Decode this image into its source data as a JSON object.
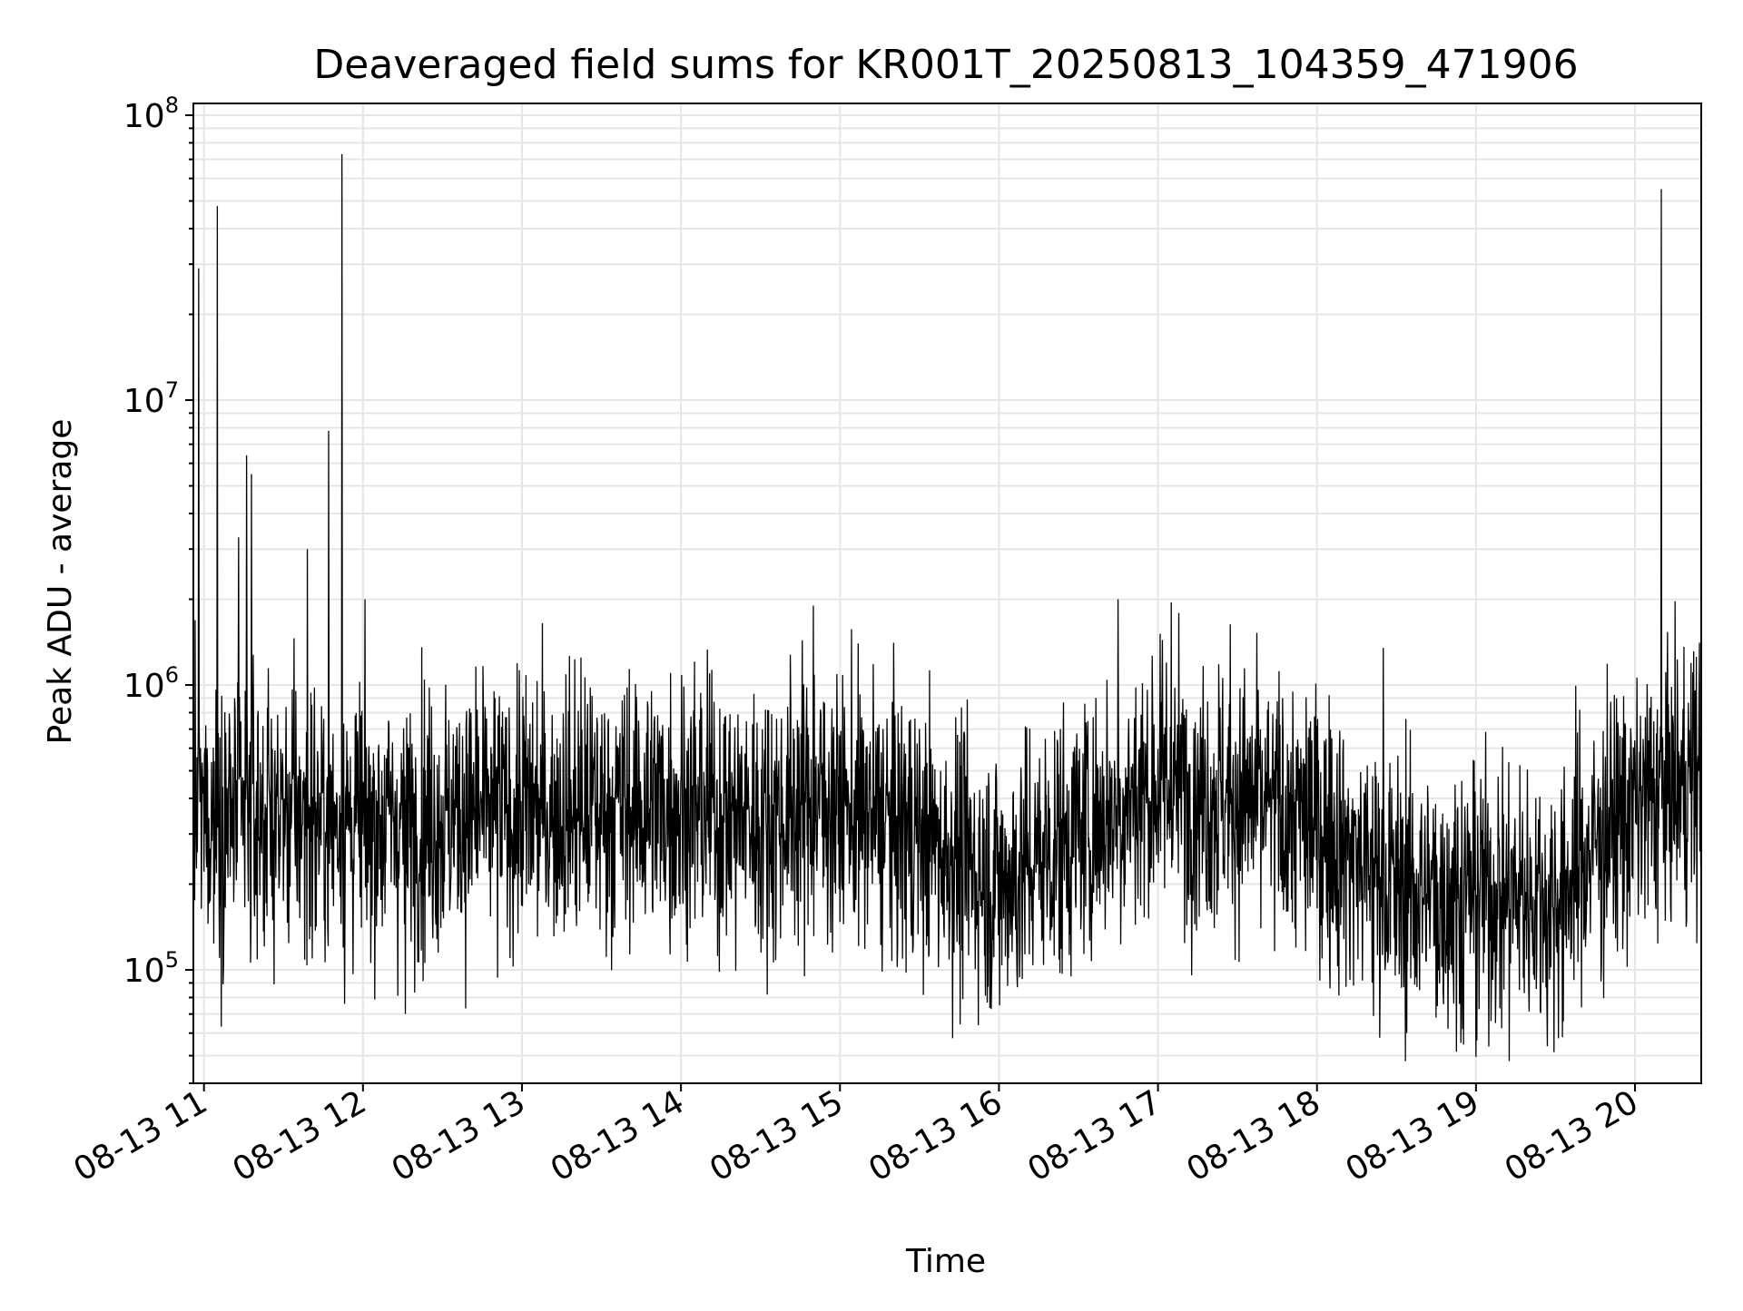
{
  "chart_data": {
    "type": "line",
    "title": "Deaveraged field sums for KR001T_20250813_104359_471906",
    "xlabel": "Time",
    "ylabel": "Peak ADU - average",
    "yscale": "log",
    "grid": true,
    "line_color": "#000000",
    "grid_color": "#e6e6e6",
    "x_range": [
      "2025-08-13 10:56",
      "2025-08-13 20:25"
    ],
    "ylim": [
      40000,
      110000000
    ],
    "x_ticks": [
      {
        "time": "2025-08-13 11:00",
        "label": "08-13 11"
      },
      {
        "time": "2025-08-13 12:00",
        "label": "08-13 12"
      },
      {
        "time": "2025-08-13 13:00",
        "label": "08-13 13"
      },
      {
        "time": "2025-08-13 14:00",
        "label": "08-13 14"
      },
      {
        "time": "2025-08-13 15:00",
        "label": "08-13 15"
      },
      {
        "time": "2025-08-13 16:00",
        "label": "08-13 16"
      },
      {
        "time": "2025-08-13 17:00",
        "label": "08-13 17"
      },
      {
        "time": "2025-08-13 18:00",
        "label": "08-13 18"
      },
      {
        "time": "2025-08-13 19:00",
        "label": "08-13 19"
      },
      {
        "time": "2025-08-13 20:00",
        "label": "08-13 20"
      }
    ],
    "y_ticks": [
      {
        "value": 100000,
        "base": "10",
        "exp": "5"
      },
      {
        "value": 1000000,
        "base": "10",
        "exp": "6"
      },
      {
        "value": 10000000,
        "base": "10",
        "exp": "7"
      },
      {
        "value": 100000000,
        "base": "10",
        "exp": "8"
      }
    ],
    "baseline": [
      {
        "time": "2025-08-13 10:56",
        "value": 350000
      },
      {
        "time": "2025-08-13 11:30",
        "value": 350000
      },
      {
        "time": "2025-08-13 12:00",
        "value": 330000
      },
      {
        "time": "2025-08-13 13:00",
        "value": 360000
      },
      {
        "time": "2025-08-13 14:00",
        "value": 380000
      },
      {
        "time": "2025-08-13 14:30",
        "value": 330000
      },
      {
        "time": "2025-08-13 14:50",
        "value": 400000
      },
      {
        "time": "2025-08-13 15:30",
        "value": 300000
      },
      {
        "time": "2025-08-13 16:00",
        "value": 200000
      },
      {
        "time": "2025-08-13 16:40",
        "value": 350000
      },
      {
        "time": "2025-08-13 17:00",
        "value": 450000
      },
      {
        "time": "2025-08-13 17:30",
        "value": 400000
      },
      {
        "time": "2025-08-13 18:00",
        "value": 320000
      },
      {
        "time": "2025-08-13 18:30",
        "value": 190000
      },
      {
        "time": "2025-08-13 19:30",
        "value": 180000
      },
      {
        "time": "2025-08-13 19:50",
        "value": 320000
      },
      {
        "time": "2025-08-13 20:25",
        "value": 500000
      }
    ],
    "spikes": [
      {
        "time": "2025-08-13 10:58",
        "value": 29000000
      },
      {
        "time": "2025-08-13 11:05",
        "value": 48000000
      },
      {
        "time": "2025-08-13 11:13",
        "value": 3300000
      },
      {
        "time": "2025-08-13 11:16",
        "value": 6400000
      },
      {
        "time": "2025-08-13 11:18",
        "value": 5500000
      },
      {
        "time": "2025-08-13 11:39",
        "value": 3000000
      },
      {
        "time": "2025-08-13 11:47",
        "value": 7800000
      },
      {
        "time": "2025-08-13 11:52",
        "value": 73000000
      },
      {
        "time": "2025-08-13 14:50",
        "value": 1900000
      },
      {
        "time": "2025-08-13 16:45",
        "value": 2000000
      },
      {
        "time": "2025-08-13 17:05",
        "value": 1950000
      },
      {
        "time": "2025-08-13 18:25",
        "value": 1350000
      },
      {
        "time": "2025-08-13 20:10",
        "value": 55000000
      }
    ],
    "dips": [
      {
        "time": "2025-08-13 12:16",
        "value": 70000
      },
      {
        "time": "2025-08-13 18:45",
        "value": 68000
      },
      {
        "time": "2025-08-13 18:55",
        "value": 62000
      },
      {
        "time": "2025-08-13 19:27",
        "value": 54000
      },
      {
        "time": "2025-08-13 19:33",
        "value": 66000
      }
    ]
  }
}
